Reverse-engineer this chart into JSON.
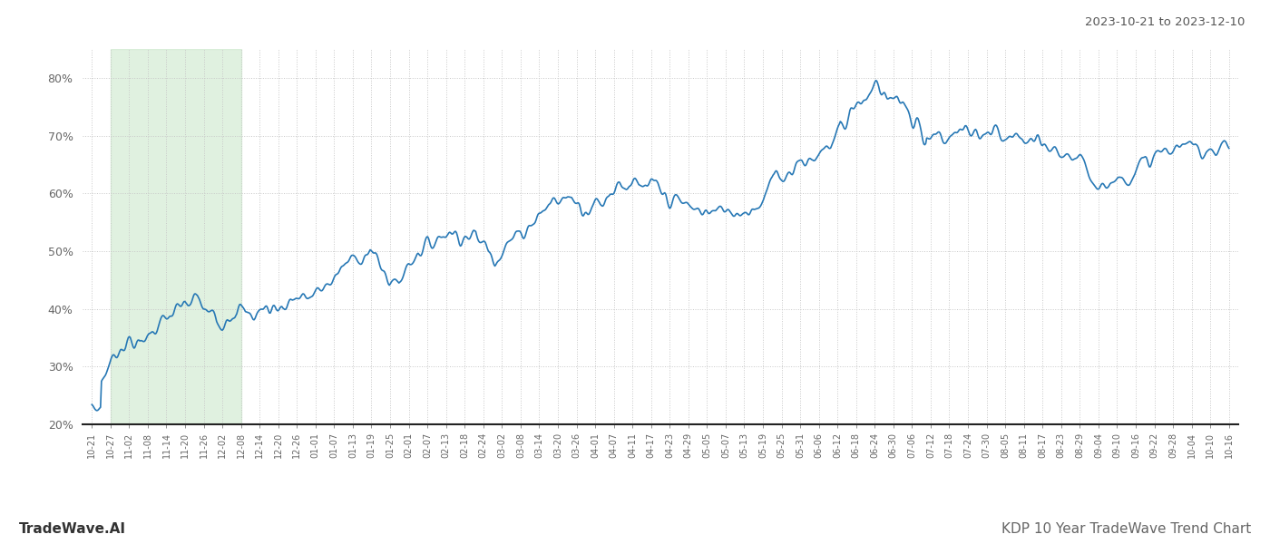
{
  "title_top_right": "2023-10-21 to 2023-12-10",
  "title_bottom_left": "TradeWave.AI",
  "title_bottom_right": "KDP 10 Year TradeWave Trend Chart",
  "y_min": 20,
  "y_max": 85,
  "y_ticks": [
    20,
    30,
    40,
    50,
    60,
    70,
    80
  ],
  "line_color": "#2778b5",
  "line_width": 1.2,
  "shading_color": "#c8e6c8",
  "shading_alpha": 0.55,
  "background_color": "#ffffff",
  "grid_color": "#c8c8c8",
  "grid_style": ":",
  "x_labels": [
    "10-21",
    "10-27",
    "11-02",
    "11-08",
    "11-14",
    "11-20",
    "11-26",
    "12-02",
    "12-08",
    "12-14",
    "12-20",
    "12-26",
    "01-01",
    "01-07",
    "01-13",
    "01-19",
    "01-25",
    "02-01",
    "02-07",
    "02-13",
    "02-18",
    "02-24",
    "03-02",
    "03-08",
    "03-14",
    "03-20",
    "03-26",
    "04-01",
    "04-07",
    "04-11",
    "04-17",
    "04-23",
    "04-29",
    "05-05",
    "05-07",
    "05-13",
    "05-19",
    "05-25",
    "05-31",
    "06-06",
    "06-12",
    "06-18",
    "06-24",
    "06-30",
    "07-06",
    "07-12",
    "07-18",
    "07-24",
    "07-30",
    "08-05",
    "08-11",
    "08-17",
    "08-23",
    "08-29",
    "09-04",
    "09-10",
    "09-16",
    "09-22",
    "09-28",
    "10-04",
    "10-10",
    "10-16"
  ],
  "shading_x_start_label": "10-27",
  "shading_x_end_label": "12-08",
  "key_values": {
    "0": 22.5,
    "9": 23.0,
    "10": 27.5,
    "20": 31.0,
    "30": 33.5,
    "40": 34.5,
    "50": 33.5,
    "60": 36.0,
    "80": 38.5,
    "100": 41.0,
    "110": 41.5,
    "120": 39.5,
    "130": 38.0,
    "150": 40.5,
    "160": 38.5,
    "180": 40.0,
    "200": 40.5,
    "210": 42.0,
    "230": 42.0,
    "250": 45.0,
    "270": 48.5,
    "290": 50.0,
    "310": 45.0,
    "320": 44.5,
    "330": 48.0,
    "340": 50.0,
    "350": 51.0,
    "370": 53.5,
    "390": 52.5,
    "400": 52.5,
    "410": 51.0,
    "420": 49.5,
    "440": 52.0,
    "460": 55.5,
    "480": 58.5,
    "500": 59.5,
    "510": 58.0,
    "530": 58.0,
    "540": 60.5,
    "550": 62.0,
    "560": 61.5,
    "570": 60.5,
    "580": 61.0,
    "590": 60.5,
    "600": 59.0,
    "610": 58.5,
    "620": 58.0,
    "630": 57.0,
    "640": 57.0,
    "650": 56.5,
    "660": 57.5,
    "670": 57.0,
    "680": 57.0,
    "690": 57.5,
    "700": 59.0,
    "710": 62.5,
    "720": 63.0,
    "730": 64.5,
    "740": 66.0,
    "750": 65.5,
    "760": 67.0,
    "770": 68.5,
    "780": 72.0,
    "790": 74.0,
    "800": 76.0,
    "810": 77.5,
    "820": 79.0,
    "830": 78.0,
    "840": 75.5,
    "850": 73.0,
    "860": 71.0,
    "870": 70.5,
    "880": 70.0,
    "890": 69.5,
    "900": 70.5,
    "910": 71.0,
    "920": 70.0,
    "930": 70.0,
    "940": 70.5,
    "950": 69.0,
    "960": 69.0,
    "970": 69.5,
    "980": 68.5,
    "990": 68.0,
    "1000": 67.5,
    "1010": 67.0,
    "1020": 66.5,
    "1030": 65.0,
    "1040": 63.5,
    "1050": 62.0,
    "1060": 61.5,
    "1070": 62.5,
    "1080": 63.5,
    "1090": 64.0,
    "1100": 65.5,
    "1110": 66.5,
    "1120": 67.5,
    "1130": 67.5,
    "1140": 68.0,
    "1150": 68.5,
    "1160": 67.5,
    "1170": 68.0,
    "1180": 68.0,
    "1185": 67.5
  }
}
